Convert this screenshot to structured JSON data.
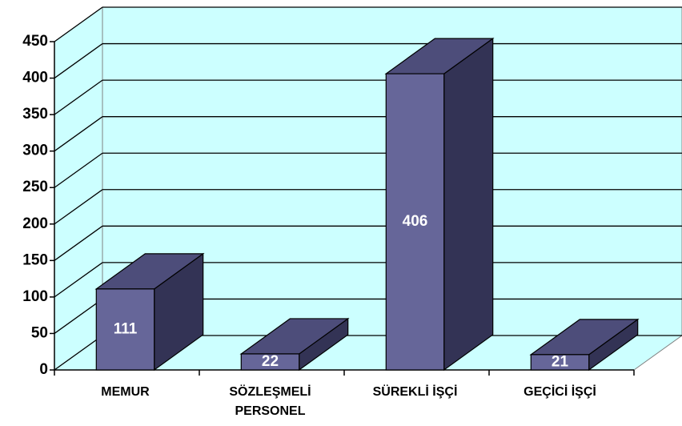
{
  "chart_data": {
    "type": "bar",
    "categories": [
      "MEMUR",
      "SÖZLEŞMELİ PERSONEL",
      "SÜREKLİ İŞÇİ",
      "GEÇİCİ İŞÇİ"
    ],
    "values": [
      111,
      22,
      406,
      21
    ],
    "color": "#666699",
    "ylim": [
      0,
      450
    ],
    "yticks": [
      0,
      50,
      100,
      150,
      200,
      250,
      300,
      350,
      400,
      450
    ],
    "grid": true
  }
}
